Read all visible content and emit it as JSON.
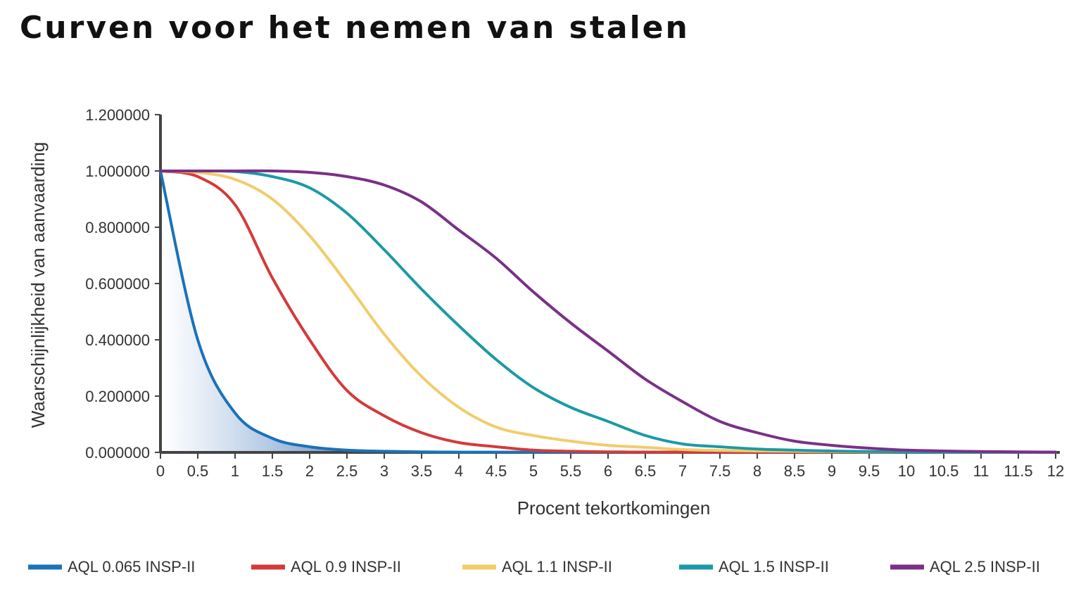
{
  "title": "Curven voor het nemen van stalen",
  "chart_data": {
    "type": "line",
    "title": "Curven voor het nemen van stalen",
    "xlabel": "Procent tekortkomingen",
    "ylabel": "Waarschijnlijkheid van aanvaarding",
    "xlim": [
      0,
      12
    ],
    "ylim": [
      0,
      1.2
    ],
    "x_ticks": [
      "0",
      "0.5",
      "1",
      "1.5",
      "2",
      "2.5",
      "3",
      "3.5",
      "4",
      "4.5",
      "5",
      "5.5",
      "6",
      "6.5",
      "7",
      "7.5",
      "8",
      "8.5",
      "9",
      "9.5",
      "10",
      "10.5",
      "11",
      "11.5",
      "12"
    ],
    "y_ticks": [
      "0.000000",
      "0.200000",
      "0.400000",
      "0.600000",
      "0.800000",
      "1.000000",
      "1.200000"
    ],
    "grid": false,
    "legend_position": "bottom",
    "x": [
      0,
      0.5,
      1,
      1.5,
      2,
      2.5,
      3,
      3.5,
      4,
      4.5,
      5,
      5.5,
      6,
      6.5,
      7,
      7.5,
      8,
      8.5,
      9,
      9.5,
      10,
      10.5,
      11,
      11.5,
      12
    ],
    "series": [
      {
        "name": "AQL 0.065 INSP-II",
        "color": "#1a72b8",
        "values": [
          1.0,
          0.4,
          0.14,
          0.05,
          0.02,
          0.008,
          0.004,
          0.002,
          0.001,
          0.001,
          0.001,
          0.001,
          0.001,
          0.001,
          0.001,
          0.001,
          0.001,
          0.001,
          0.001,
          0.001,
          0.001,
          0.001,
          0.001,
          0.001,
          0.001
        ]
      },
      {
        "name": "AQL 0.9 INSP-II",
        "color": "#d43a3a",
        "values": [
          1.0,
          0.98,
          0.88,
          0.62,
          0.4,
          0.22,
          0.13,
          0.07,
          0.035,
          0.02,
          0.008,
          0.004,
          0.002,
          0.001,
          0.001,
          0.001,
          0.001,
          0.001,
          0.001,
          0.001,
          0.001,
          0.001,
          0.001,
          0.001,
          0.001
        ]
      },
      {
        "name": "AQL 1.1 INSP-II",
        "color": "#f2cc6b",
        "values": [
          1.0,
          0.995,
          0.97,
          0.9,
          0.77,
          0.6,
          0.42,
          0.27,
          0.16,
          0.09,
          0.06,
          0.04,
          0.025,
          0.018,
          0.01,
          0.007,
          0.005,
          0.004,
          0.003,
          0.002,
          0.002,
          0.001,
          0.001,
          0.001,
          0.001
        ]
      },
      {
        "name": "AQL 1.5 INSP-II",
        "color": "#1a9aa6",
        "values": [
          1.0,
          1.0,
          0.998,
          0.98,
          0.94,
          0.85,
          0.72,
          0.58,
          0.45,
          0.33,
          0.23,
          0.16,
          0.11,
          0.06,
          0.03,
          0.02,
          0.012,
          0.008,
          0.005,
          0.003,
          0.002,
          0.001,
          0.001,
          0.001,
          0.001
        ]
      },
      {
        "name": "AQL 2.5 INSP-II",
        "color": "#7a3088",
        "values": [
          1.0,
          1.0,
          1.0,
          1.0,
          0.995,
          0.98,
          0.95,
          0.89,
          0.79,
          0.69,
          0.57,
          0.46,
          0.36,
          0.26,
          0.18,
          0.11,
          0.07,
          0.04,
          0.025,
          0.015,
          0.008,
          0.005,
          0.003,
          0.002,
          0.001
        ]
      }
    ]
  }
}
